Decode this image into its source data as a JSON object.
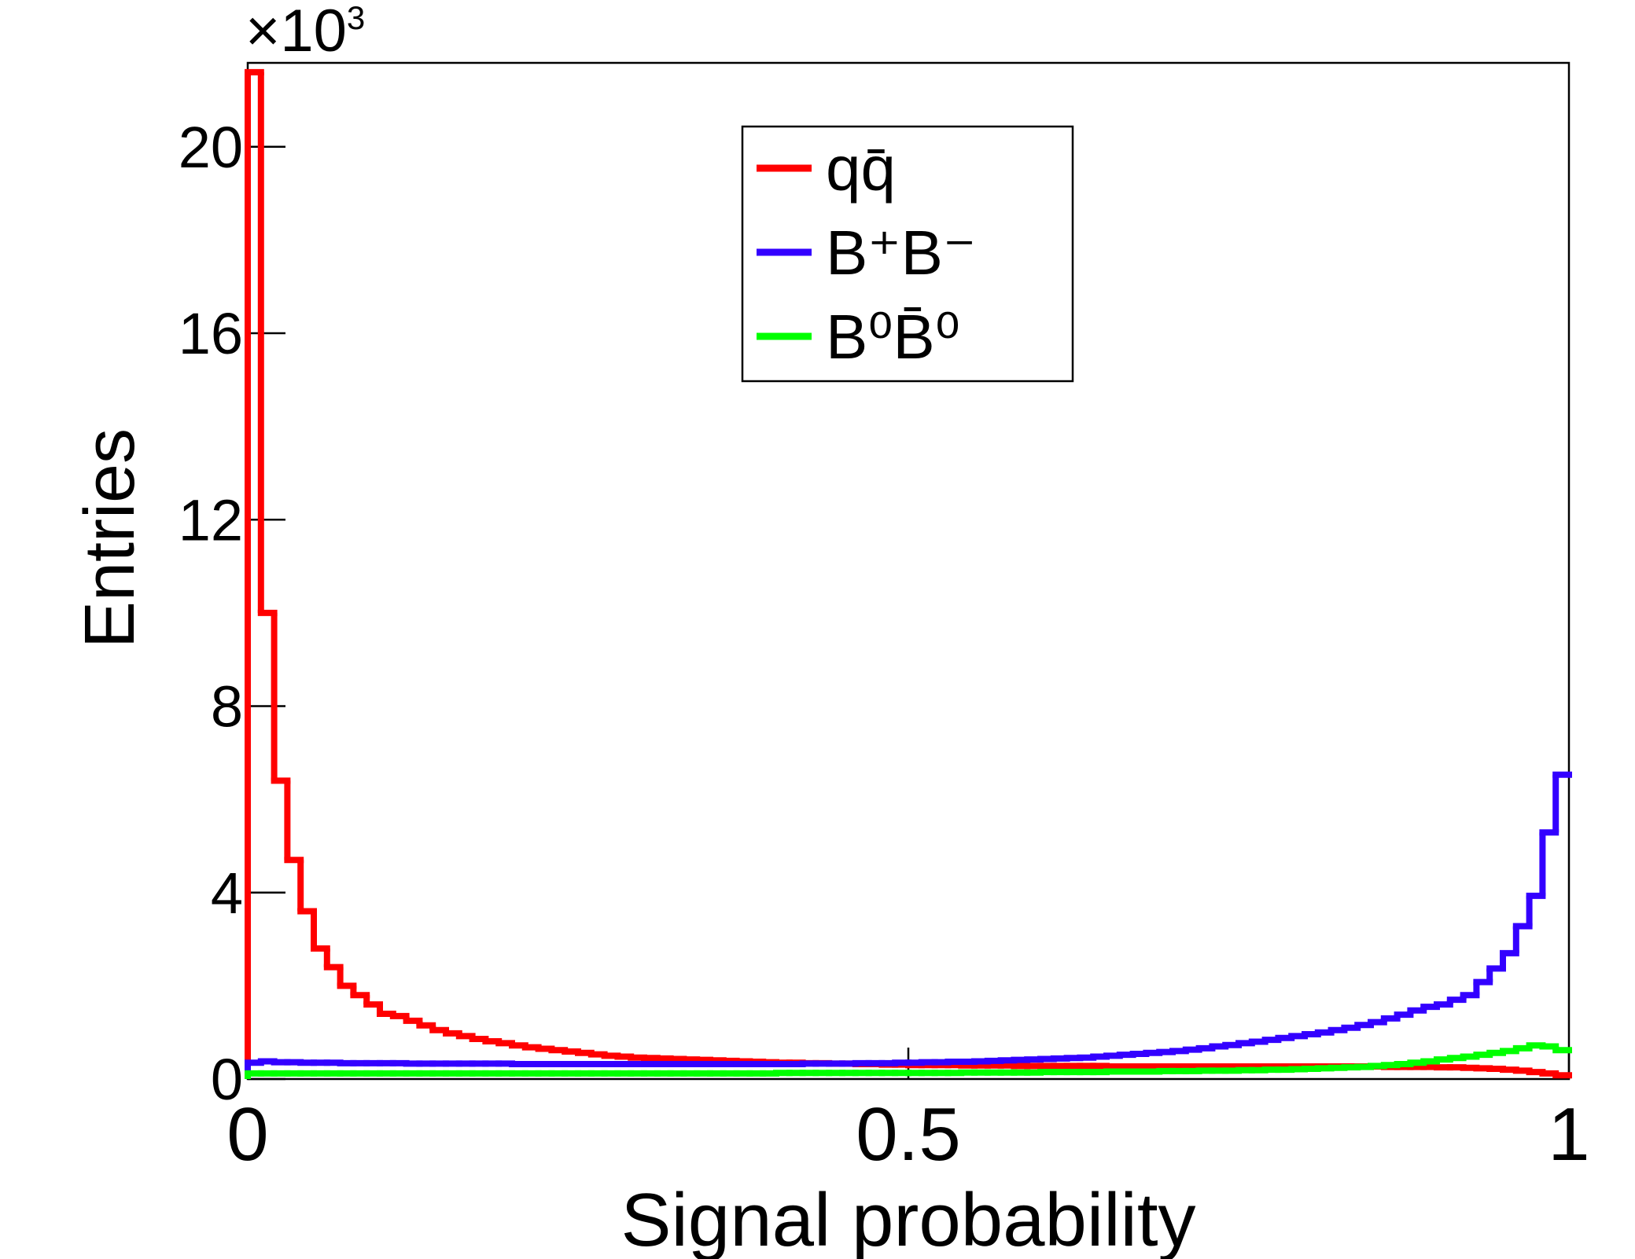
{
  "chart_data": {
    "type": "histogram",
    "x_label": "Signal probability",
    "y_label": "Entries",
    "y_multiplier": "×10",
    "y_multiplier_exponent": "3",
    "bins": [
      0,
      0.01,
      0.02,
      0.03,
      0.04,
      0.05,
      0.06,
      0.07,
      0.08,
      0.09,
      0.1,
      0.11,
      0.12,
      0.13,
      0.14,
      0.15,
      0.16,
      0.17,
      0.18,
      0.19,
      0.2,
      0.21,
      0.22,
      0.23,
      0.24,
      0.25,
      0.26,
      0.27,
      0.28,
      0.29,
      0.3,
      0.31,
      0.32,
      0.33,
      0.34,
      0.35,
      0.36,
      0.37,
      0.38,
      0.39,
      0.4,
      0.41,
      0.42,
      0.43,
      0.44,
      0.45,
      0.46,
      0.47,
      0.48,
      0.49,
      0.5,
      0.51,
      0.52,
      0.53,
      0.54,
      0.55,
      0.56,
      0.57,
      0.58,
      0.59,
      0.6,
      0.61,
      0.62,
      0.63,
      0.64,
      0.65,
      0.66,
      0.67,
      0.68,
      0.69,
      0.7,
      0.71,
      0.72,
      0.73,
      0.74,
      0.75,
      0.76,
      0.77,
      0.78,
      0.79,
      0.8,
      0.81,
      0.82,
      0.83,
      0.84,
      0.85,
      0.86,
      0.87,
      0.88,
      0.89,
      0.9,
      0.91,
      0.92,
      0.93,
      0.94,
      0.95,
      0.96,
      0.97,
      0.98,
      0.99,
      1
    ],
    "series": [
      {
        "name": "qq̄",
        "color": "#ff0000",
        "values": [
          21.6,
          10.0,
          6.4,
          4.7,
          3.6,
          2.8,
          2.4,
          2.0,
          1.8,
          1.6,
          1.4,
          1.35,
          1.25,
          1.15,
          1.05,
          0.98,
          0.92,
          0.86,
          0.81,
          0.77,
          0.72,
          0.68,
          0.65,
          0.62,
          0.59,
          0.56,
          0.53,
          0.5,
          0.48,
          0.46,
          0.45,
          0.44,
          0.43,
          0.42,
          0.41,
          0.4,
          0.39,
          0.38,
          0.37,
          0.36,
          0.35,
          0.35,
          0.34,
          0.34,
          0.33,
          0.33,
          0.32,
          0.32,
          0.31,
          0.31,
          0.3,
          0.3,
          0.3,
          0.3,
          0.29,
          0.29,
          0.29,
          0.29,
          0.28,
          0.28,
          0.28,
          0.28,
          0.28,
          0.28,
          0.28,
          0.27,
          0.27,
          0.27,
          0.27,
          0.27,
          0.27,
          0.27,
          0.27,
          0.27,
          0.27,
          0.27,
          0.27,
          0.27,
          0.27,
          0.27,
          0.27,
          0.27,
          0.27,
          0.27,
          0.27,
          0.27,
          0.26,
          0.26,
          0.26,
          0.26,
          0.25,
          0.25,
          0.24,
          0.23,
          0.22,
          0.2,
          0.18,
          0.15,
          0.12,
          0.08
        ]
      },
      {
        "name": "B⁺B⁻",
        "color": "#3300ff",
        "values": [
          0.35,
          0.38,
          0.36,
          0.36,
          0.35,
          0.35,
          0.35,
          0.34,
          0.34,
          0.34,
          0.34,
          0.34,
          0.33,
          0.33,
          0.33,
          0.33,
          0.33,
          0.33,
          0.33,
          0.33,
          0.32,
          0.32,
          0.32,
          0.32,
          0.32,
          0.32,
          0.32,
          0.32,
          0.32,
          0.32,
          0.32,
          0.32,
          0.32,
          0.32,
          0.32,
          0.32,
          0.32,
          0.32,
          0.32,
          0.32,
          0.32,
          0.32,
          0.33,
          0.33,
          0.33,
          0.33,
          0.34,
          0.34,
          0.34,
          0.35,
          0.35,
          0.36,
          0.36,
          0.37,
          0.37,
          0.38,
          0.39,
          0.4,
          0.41,
          0.42,
          0.43,
          0.44,
          0.45,
          0.46,
          0.48,
          0.5,
          0.52,
          0.54,
          0.56,
          0.58,
          0.6,
          0.63,
          0.66,
          0.7,
          0.73,
          0.77,
          0.8,
          0.84,
          0.88,
          0.92,
          0.96,
          1.0,
          1.05,
          1.1,
          1.16,
          1.22,
          1.3,
          1.38,
          1.47,
          1.55,
          1.6,
          1.7,
          1.8,
          2.08,
          2.37,
          2.7,
          3.28,
          3.93,
          5.29,
          6.53
        ]
      },
      {
        "name": "B⁰B̄⁰",
        "color": "#00ff00",
        "values": [
          0.12,
          0.12,
          0.12,
          0.12,
          0.12,
          0.12,
          0.12,
          0.12,
          0.12,
          0.12,
          0.12,
          0.12,
          0.12,
          0.12,
          0.12,
          0.12,
          0.12,
          0.12,
          0.12,
          0.12,
          0.12,
          0.12,
          0.12,
          0.12,
          0.12,
          0.12,
          0.12,
          0.12,
          0.12,
          0.12,
          0.12,
          0.12,
          0.12,
          0.12,
          0.12,
          0.12,
          0.12,
          0.12,
          0.12,
          0.12,
          0.13,
          0.13,
          0.13,
          0.13,
          0.13,
          0.13,
          0.13,
          0.13,
          0.13,
          0.13,
          0.13,
          0.13,
          0.13,
          0.13,
          0.14,
          0.14,
          0.14,
          0.14,
          0.14,
          0.14,
          0.15,
          0.15,
          0.15,
          0.15,
          0.15,
          0.16,
          0.16,
          0.16,
          0.16,
          0.17,
          0.17,
          0.17,
          0.18,
          0.18,
          0.18,
          0.19,
          0.19,
          0.2,
          0.2,
          0.21,
          0.22,
          0.23,
          0.24,
          0.25,
          0.26,
          0.28,
          0.3,
          0.32,
          0.35,
          0.38,
          0.42,
          0.45,
          0.48,
          0.52,
          0.56,
          0.6,
          0.66,
          0.72,
          0.7,
          0.62
        ]
      }
    ],
    "xlim": [
      0,
      1
    ],
    "xticks": [
      0,
      0.5,
      1
    ],
    "ylim": [
      0,
      21.8
    ],
    "yticks": [
      0,
      4,
      8,
      12,
      16,
      20
    ]
  }
}
